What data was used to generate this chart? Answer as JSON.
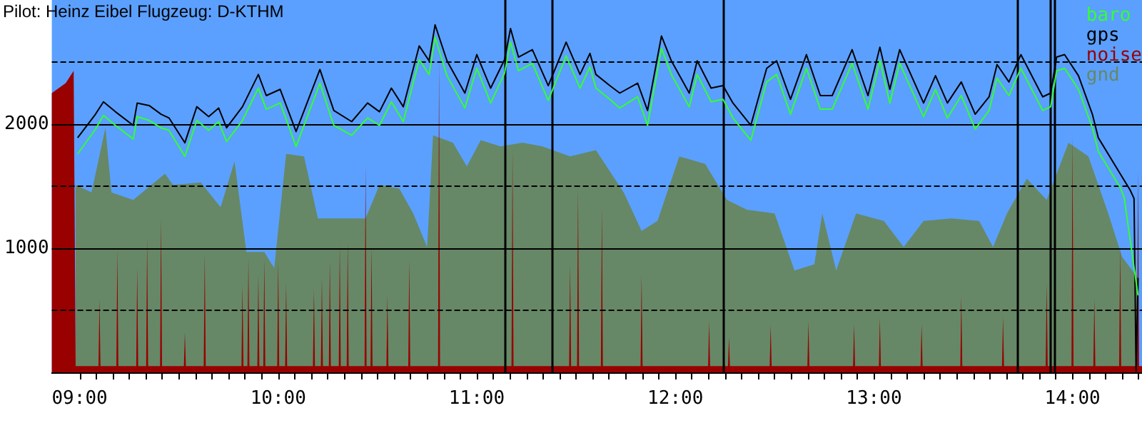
{
  "chart_data": {
    "type": "line",
    "title": "Pilot: Heinz Eibel Flugzeug: D-KTHM",
    "xlim": [
      8.86,
      14.35
    ],
    "ylim": [
      0,
      3000
    ],
    "xticks": [
      {
        "value": 9,
        "label": "09:00"
      },
      {
        "value": 9.0833,
        "label": null
      },
      {
        "value": 9.1667,
        "label": null
      },
      {
        "value": 9.25,
        "label": null
      },
      {
        "value": 9.3333,
        "label": null
      },
      {
        "value": 9.4167,
        "label": null
      },
      {
        "value": 9.5,
        "label": null
      },
      {
        "value": 9.5833,
        "label": null
      },
      {
        "value": 9.6667,
        "label": null
      },
      {
        "value": 9.75,
        "label": null
      },
      {
        "value": 9.8333,
        "label": null
      },
      {
        "value": 9.9167,
        "label": null
      },
      {
        "value": 10,
        "label": "10:00"
      },
      {
        "value": 10.0833,
        "label": null
      },
      {
        "value": 10.1667,
        "label": null
      },
      {
        "value": 10.25,
        "label": null
      },
      {
        "value": 10.3333,
        "label": null
      },
      {
        "value": 10.4167,
        "label": null
      },
      {
        "value": 10.5,
        "label": null
      },
      {
        "value": 10.5833,
        "label": null
      },
      {
        "value": 10.6667,
        "label": null
      },
      {
        "value": 10.75,
        "label": null
      },
      {
        "value": 10.8333,
        "label": null
      },
      {
        "value": 10.9167,
        "label": null
      },
      {
        "value": 11,
        "label": "11:00"
      },
      {
        "value": 11.0833,
        "label": null
      },
      {
        "value": 11.1667,
        "label": null
      },
      {
        "value": 11.25,
        "label": null
      },
      {
        "value": 11.3333,
        "label": null
      },
      {
        "value": 11.4167,
        "label": null
      },
      {
        "value": 11.5,
        "label": null
      },
      {
        "value": 11.5833,
        "label": null
      },
      {
        "value": 11.6667,
        "label": null
      },
      {
        "value": 11.75,
        "label": null
      },
      {
        "value": 11.8333,
        "label": null
      },
      {
        "value": 11.9167,
        "label": null
      },
      {
        "value": 12,
        "label": "12:00"
      },
      {
        "value": 12.0833,
        "label": null
      },
      {
        "value": 12.1667,
        "label": null
      },
      {
        "value": 12.25,
        "label": null
      },
      {
        "value": 12.3333,
        "label": null
      },
      {
        "value": 12.4167,
        "label": null
      },
      {
        "value": 12.5,
        "label": null
      },
      {
        "value": 12.5833,
        "label": null
      },
      {
        "value": 12.6667,
        "label": null
      },
      {
        "value": 12.75,
        "label": null
      },
      {
        "value": 12.8333,
        "label": null
      },
      {
        "value": 12.9167,
        "label": null
      },
      {
        "value": 13,
        "label": "13:00"
      },
      {
        "value": 13.0833,
        "label": null
      },
      {
        "value": 13.1667,
        "label": null
      },
      {
        "value": 13.25,
        "label": null
      },
      {
        "value": 13.3333,
        "label": null
      },
      {
        "value": 13.4167,
        "label": null
      },
      {
        "value": 13.5,
        "label": null
      },
      {
        "value": 13.5833,
        "label": null
      },
      {
        "value": 13.6667,
        "label": null
      },
      {
        "value": 13.75,
        "label": null
      },
      {
        "value": 13.8333,
        "label": null
      },
      {
        "value": 13.9167,
        "label": null
      },
      {
        "value": 14,
        "label": "14:00"
      },
      {
        "value": 14.0833,
        "label": null
      },
      {
        "value": 14.1667,
        "label": null
      },
      {
        "value": 14.25,
        "label": null
      },
      {
        "value": 14.3333,
        "label": null
      }
    ],
    "yticks": [
      {
        "value": 500,
        "label": null
      },
      1000,
      {
        "value": 1500,
        "label": null
      },
      2000,
      {
        "value": 2500,
        "label": null
      }
    ],
    "grid": "y",
    "legend": "top right",
    "marker": "none",
    "line_style": "solid",
    "ref_lines": [
      {
        "axis": "x",
        "value": 11.14,
        "color": "#000000"
      },
      {
        "axis": "x",
        "value": 11.38,
        "color": "#000000"
      },
      {
        "axis": "x",
        "value": 12.24,
        "color": "#000000"
      },
      {
        "axis": "x",
        "value": 13.72,
        "color": "#000000"
      },
      {
        "axis": "x",
        "value": 13.89,
        "color": "#000000"
      },
      {
        "axis": "x",
        "value": 13.91,
        "color": "#000000"
      }
    ],
    "series": [
      {
        "name": "baro",
        "color": "#33ff33",
        "x": [
          8.99,
          9.08,
          9.12,
          9.18,
          9.27,
          9.29,
          9.35,
          9.41,
          9.45,
          9.53,
          9.59,
          9.65,
          9.7,
          9.74,
          9.82,
          9.9,
          9.94,
          10.01,
          10.09,
          10.21,
          10.28,
          10.37,
          10.45,
          10.51,
          10.57,
          10.63,
          10.71,
          10.76,
          10.79,
          10.85,
          10.94,
          11,
          11.07,
          11.14,
          11.17,
          11.21,
          11.28,
          11.36,
          11.45,
          11.52,
          11.57,
          11.6,
          11.67,
          11.72,
          11.81,
          11.86,
          11.93,
          11.98,
          12.07,
          12.11,
          12.18,
          12.24,
          12.29,
          12.38,
          12.46,
          12.51,
          12.58,
          12.66,
          12.73,
          12.79,
          12.89,
          12.97,
          13.03,
          13.08,
          13.13,
          13.25,
          13.31,
          13.37,
          13.44,
          13.51,
          13.58,
          13.62,
          13.68,
          13.74,
          13.85,
          13.89,
          13.92,
          13.96,
          14.03,
          14.1,
          14.13,
          14.24,
          14.26,
          14.33
        ],
        "values": [
          1760,
          1960,
          2070,
          1990,
          1880,
          2060,
          2030,
          1970,
          1950,
          1740,
          2030,
          1950,
          2020,
          1860,
          2030,
          2290,
          2120,
          2170,
          1820,
          2330,
          1990,
          1910,
          2050,
          1990,
          2180,
          2020,
          2520,
          2400,
          2700,
          2390,
          2130,
          2450,
          2170,
          2410,
          2660,
          2430,
          2490,
          2190,
          2550,
          2290,
          2460,
          2290,
          2200,
          2130,
          2220,
          1990,
          2610,
          2400,
          2140,
          2400,
          2180,
          2200,
          2050,
          1870,
          2340,
          2400,
          2080,
          2450,
          2120,
          2120,
          2490,
          2120,
          2510,
          2170,
          2490,
          2060,
          2280,
          2050,
          2230,
          1960,
          2110,
          2370,
          2230,
          2450,
          2110,
          2140,
          2430,
          2450,
          2280,
          1970,
          1780,
          1490,
          1410,
          620
        ]
      },
      {
        "name": "gps",
        "color": "#000000",
        "x": [
          8.99,
          9.08,
          9.12,
          9.18,
          9.27,
          9.29,
          9.35,
          9.41,
          9.45,
          9.53,
          9.59,
          9.65,
          9.7,
          9.74,
          9.82,
          9.9,
          9.94,
          10.01,
          10.09,
          10.21,
          10.28,
          10.37,
          10.45,
          10.51,
          10.57,
          10.63,
          10.71,
          10.76,
          10.79,
          10.85,
          10.94,
          11,
          11.07,
          11.14,
          11.17,
          11.21,
          11.28,
          11.36,
          11.45,
          11.52,
          11.57,
          11.6,
          11.67,
          11.72,
          11.81,
          11.86,
          11.93,
          11.98,
          12.07,
          12.11,
          12.18,
          12.24,
          12.29,
          12.38,
          12.46,
          12.51,
          12.58,
          12.66,
          12.73,
          12.79,
          12.89,
          12.97,
          13.03,
          13.08,
          13.13,
          13.25,
          13.31,
          13.37,
          13.44,
          13.51,
          13.58,
          13.62,
          13.68,
          13.74,
          13.85,
          13.89,
          13.92,
          13.96,
          14.03,
          14.1,
          14.13,
          14.24,
          14.29,
          14.31,
          14.32,
          14.33
        ],
        "values": [
          1890,
          2080,
          2180,
          2100,
          1990,
          2170,
          2150,
          2080,
          2050,
          1850,
          2140,
          2060,
          2130,
          1970,
          2140,
          2400,
          2230,
          2280,
          1940,
          2440,
          2110,
          2020,
          2170,
          2100,
          2290,
          2140,
          2630,
          2510,
          2800,
          2510,
          2250,
          2560,
          2290,
          2520,
          2770,
          2540,
          2600,
          2310,
          2660,
          2400,
          2570,
          2400,
          2310,
          2250,
          2330,
          2110,
          2710,
          2510,
          2250,
          2510,
          2290,
          2310,
          2170,
          1990,
          2450,
          2510,
          2200,
          2560,
          2230,
          2230,
          2600,
          2230,
          2620,
          2280,
          2600,
          2170,
          2390,
          2170,
          2340,
          2080,
          2220,
          2480,
          2340,
          2560,
          2220,
          2250,
          2540,
          2560,
          2390,
          2080,
          1890,
          1600,
          1470,
          1400,
          10,
          760
        ]
      },
      {
        "name": "noise",
        "type": "area",
        "color": "#990000",
        "x": [
          8.86,
          8.93,
          8.97,
          8.98,
          9.095,
          9.1,
          9.105,
          9.185,
          9.19,
          9.195,
          9.285,
          9.29,
          9.295,
          9.335,
          9.34,
          9.345,
          9.405,
          9.41,
          9.415,
          9.525,
          9.53,
          9.535,
          9.625,
          9.63,
          9.635,
          9.815,
          9.82,
          9.825,
          9.845,
          9.85,
          9.855,
          9.895,
          9.9,
          9.905,
          9.925,
          9.93,
          9.935,
          9.995,
          10,
          10.005,
          10.035,
          10.04,
          10.045,
          10.175,
          10.18,
          10.185,
          10.215,
          10.22,
          10.225,
          10.255,
          10.26,
          10.265,
          10.305,
          10.31,
          10.315,
          10.345,
          10.35,
          10.355,
          10.435,
          10.44,
          10.445,
          10.465,
          10.47,
          10.475,
          10.545,
          10.55,
          10.555,
          10.655,
          10.66,
          10.665,
          10.805,
          10.81,
          10.815,
          11.175,
          11.18,
          11.185,
          11.465,
          11.47,
          11.475,
          11.505,
          11.51,
          11.515,
          11.625,
          11.63,
          11.635,
          11.825,
          11.83,
          11.835,
          12.165,
          12.17,
          12.175,
          12.265,
          12.27,
          12.275,
          12.475,
          12.48,
          12.485,
          12.665,
          12.67,
          12.675,
          12.895,
          12.9,
          12.905,
          13.025,
          13.03,
          13.035,
          13.235,
          13.24,
          13.245,
          13.435,
          13.44,
          13.445,
          13.645,
          13.65,
          13.655,
          13.865,
          13.87,
          13.875,
          13.995,
          14,
          14.005,
          14.105,
          14.11,
          14.115,
          14.235,
          14.24,
          14.245,
          14.325,
          14.33,
          14.335,
          14.35
        ],
        "values": [
          2250,
          2330,
          2430,
          50,
          50,
          590,
          50,
          50,
          990,
          50,
          50,
          840,
          50,
          50,
          1080,
          50,
          50,
          1240,
          50,
          50,
          320,
          50,
          50,
          950,
          50,
          50,
          700,
          50,
          50,
          910,
          50,
          50,
          780,
          50,
          50,
          910,
          50,
          50,
          900,
          50,
          50,
          720,
          50,
          50,
          670,
          50,
          50,
          760,
          50,
          50,
          900,
          50,
          50,
          1020,
          50,
          50,
          1050,
          50,
          50,
          1680,
          50,
          50,
          1020,
          50,
          50,
          620,
          50,
          50,
          900,
          50,
          50,
          2520,
          50,
          50,
          1790,
          50,
          50,
          870,
          50,
          50,
          1480,
          50,
          50,
          1330,
          50,
          50,
          780,
          50,
          50,
          410,
          50,
          50,
          280,
          50,
          50,
          380,
          50,
          50,
          410,
          50,
          50,
          390,
          50,
          50,
          440,
          50,
          50,
          390,
          50,
          50,
          610,
          50,
          50,
          450,
          50,
          50,
          720,
          50,
          50,
          1910,
          50,
          50,
          590,
          50,
          50,
          1020,
          50,
          50,
          1620,
          50,
          50
        ]
      },
      {
        "name": "gnd",
        "type": "area",
        "color": "#668866",
        "x": [
          8.98,
          9.06,
          9.13,
          9.16,
          9.27,
          9.43,
          9.47,
          9.61,
          9.71,
          9.78,
          9.84,
          9.93,
          9.98,
          10.04,
          10.13,
          10.2,
          10.44,
          10.51,
          10.61,
          10.68,
          10.75,
          10.78,
          10.88,
          10.95,
          11.02,
          11.12,
          11.23,
          11.33,
          11.47,
          11.6,
          11.74,
          11.83,
          11.91,
          12.02,
          12.15,
          12.26,
          12.36,
          12.5,
          12.6,
          12.7,
          12.74,
          12.81,
          12.91,
          13.05,
          13.15,
          13.25,
          13.39,
          13.53,
          13.6,
          13.67,
          13.77,
          13.87,
          13.98,
          14.08,
          14.18,
          14.25,
          14.33
        ],
        "values": [
          1510,
          1450,
          1970,
          1450,
          1390,
          1600,
          1510,
          1530,
          1330,
          1700,
          970,
          970,
          840,
          1760,
          1740,
          1240,
          1240,
          1510,
          1480,
          1280,
          1010,
          1910,
          1850,
          1660,
          1870,
          1820,
          1850,
          1820,
          1740,
          1790,
          1450,
          1140,
          1220,
          1740,
          1680,
          1390,
          1310,
          1280,
          820,
          870,
          1280,
          820,
          1280,
          1220,
          1010,
          1220,
          1240,
          1220,
          1010,
          1280,
          1560,
          1390,
          1850,
          1740,
          1280,
          930,
          760
        ]
      }
    ]
  }
}
